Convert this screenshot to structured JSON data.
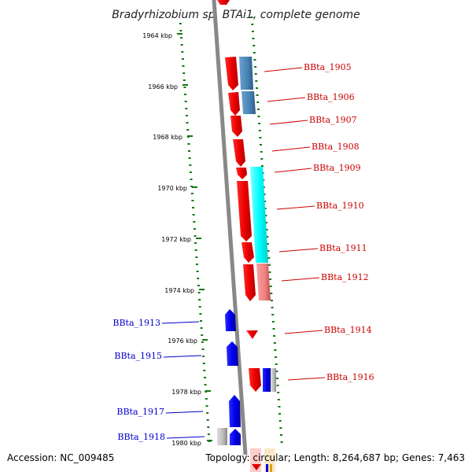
{
  "title": "Bradyrhizobium sp. BTAi1, complete genome",
  "accession": "Accession: NC_009485",
  "summary": "Topology: circular; Length: 8,264,687 bp; Genes: 7,463",
  "colors": {
    "forward_strand": "#dd0000",
    "reverse_strand": "#0000dd",
    "label_right": "#cc0000",
    "label_left": "#0000cc",
    "tick_green": "#117711",
    "backbone": "#888888",
    "steelblue": "#4682b4",
    "cyan": "#00ffff",
    "salmon": "#f08080",
    "gray": "#aaaaaa"
  },
  "kbp_ticks": [
    "1964 kbp",
    "1966 kbp",
    "1968 kbp",
    "1970 kbp",
    "1972 kbp",
    "1974 kbp",
    "1976 kbp",
    "1978 kbp",
    "1980 kbp"
  ],
  "genes_right": [
    "BBta_1905",
    "BBta_1906",
    "BBta_1907",
    "BBta_1908",
    "BBta_1909",
    "BBta_1910",
    "BBta_1911",
    "BBta_1912",
    "BBta_1914",
    "BBta_1916"
  ],
  "genes_left": [
    "BBta_1913",
    "BBta_1915",
    "BBta_1917",
    "BBta_1918"
  ]
}
